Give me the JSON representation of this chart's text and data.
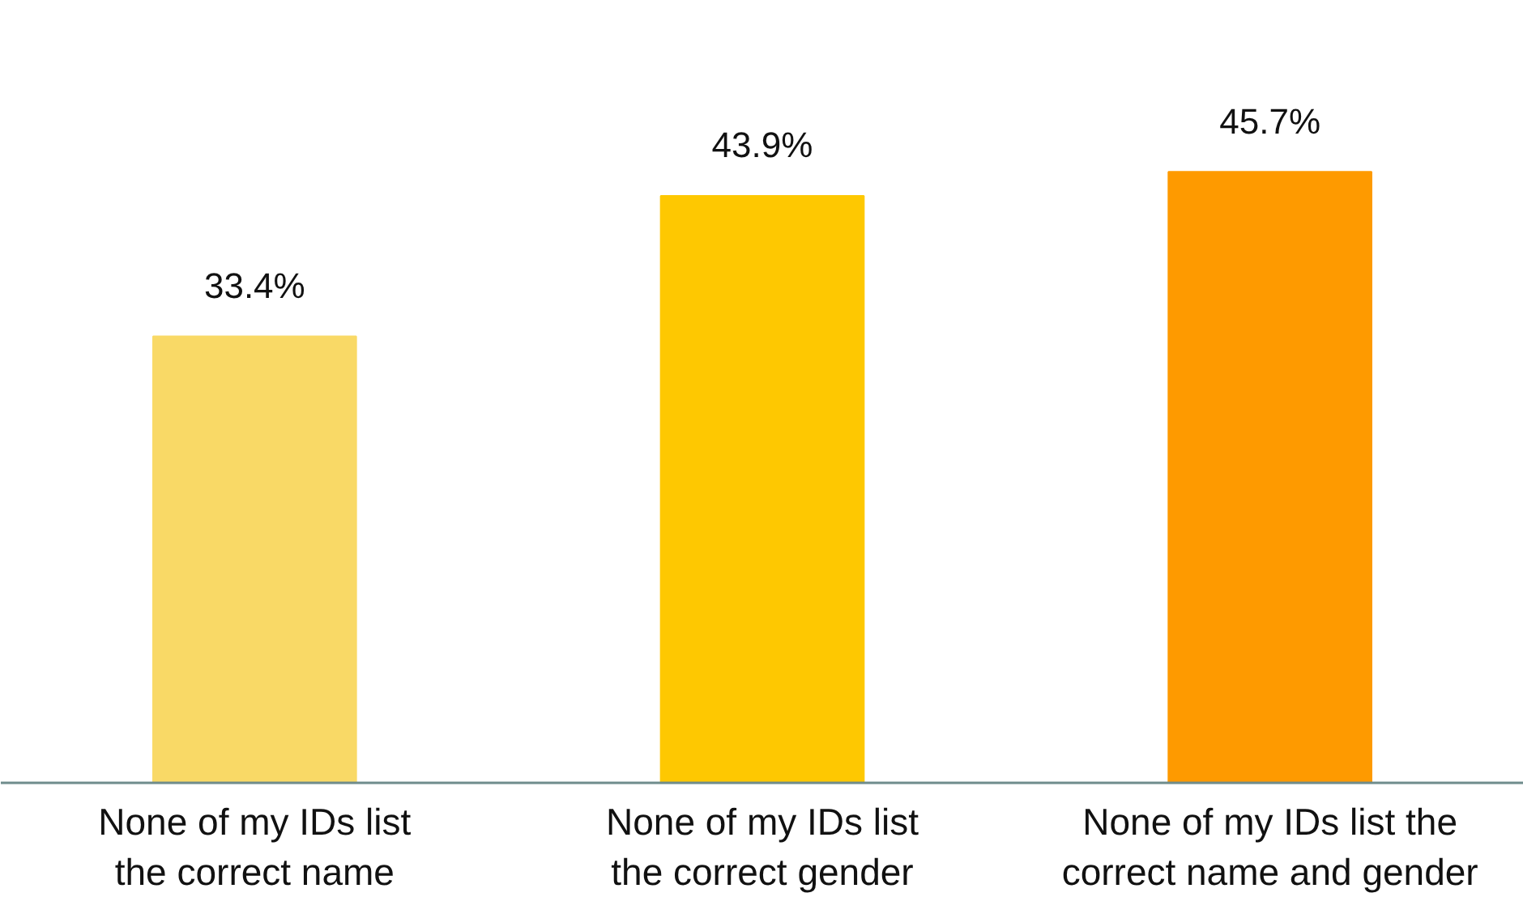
{
  "chart_data": {
    "type": "bar",
    "categories": [
      "None of my IDs list\nthe correct name",
      "None of my IDs list\nthe correct gender",
      "None of my IDs list the\ncorrect name and gender"
    ],
    "values": [
      33.4,
      43.9,
      45.7
    ],
    "colors": [
      "#f9d966",
      "#fec801",
      "#fe9a00"
    ],
    "value_labels": [
      "33.4%",
      "43.9%",
      "45.7%"
    ]
  }
}
